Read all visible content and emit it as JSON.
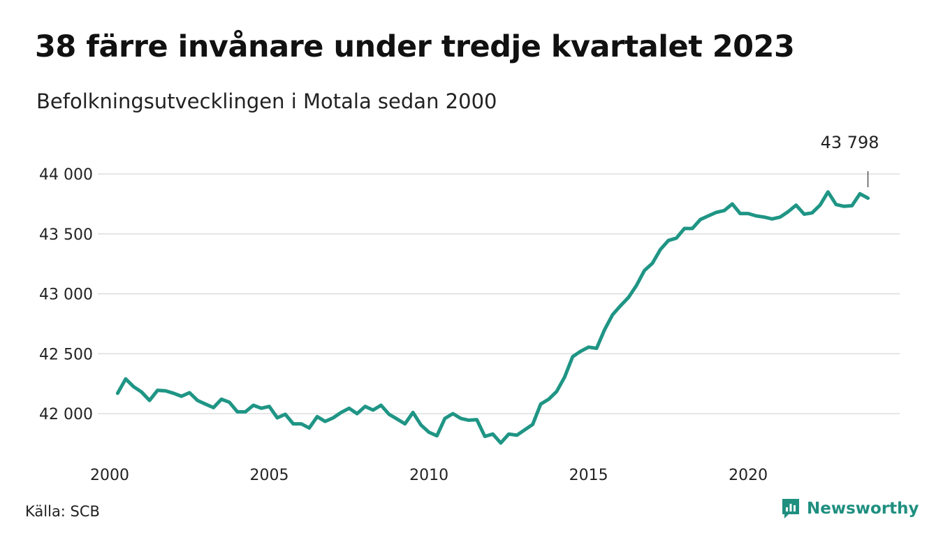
{
  "header": {
    "title": "38 färre invånare under tredje kvartalet 2023",
    "subtitle": "Befolkningsutvecklingen i Motala sedan 2000"
  },
  "footer": {
    "source": "Källa: SCB",
    "brand": "Newsworthy"
  },
  "colors": {
    "line": "#1f9585",
    "brand": "#1f8f80",
    "grid": "#dddddd"
  },
  "chart_data": {
    "type": "line",
    "title": "38 färre invånare under tredje kvartalet 2023",
    "subtitle": "Befolkningsutvecklingen i Motala sedan 2000",
    "xlabel": "",
    "ylabel": "",
    "xlim": [
      2000,
      2024
    ],
    "ylim": [
      41700,
      44000
    ],
    "grid": true,
    "x_ticks": [
      2000,
      2005,
      2010,
      2015,
      2020
    ],
    "x_tick_labels": [
      "2000",
      "2005",
      "2010",
      "2015",
      "2020"
    ],
    "y_ticks": [
      42000,
      42500,
      43000,
      43500,
      44000
    ],
    "y_tick_labels": [
      "42 000",
      "42 500",
      "43 000",
      "43 500",
      "44 000"
    ],
    "annotation": {
      "x": 2023.75,
      "y": 43798,
      "label": "43 798"
    },
    "series": [
      {
        "x": [
          2000.25,
          2000.5,
          2000.75,
          2001,
          2001.25,
          2001.5,
          2001.75,
          2002,
          2002.25,
          2002.5,
          2002.75,
          2003,
          2003.25,
          2003.5,
          2003.75,
          2004,
          2004.25,
          2004.5,
          2004.75,
          2005,
          2005.25,
          2005.5,
          2005.75,
          2006,
          2006.25,
          2006.5,
          2006.75,
          2007,
          2007.25,
          2007.5,
          2007.75,
          2008,
          2008.25,
          2008.5,
          2008.75,
          2009,
          2009.25,
          2009.5,
          2009.75,
          2010,
          2010.25,
          2010.5,
          2010.75,
          2011,
          2011.25,
          2011.5,
          2011.75,
          2012,
          2012.25,
          2012.5,
          2012.75,
          2013,
          2013.25,
          2013.5,
          2013.75,
          2014,
          2014.25,
          2014.5,
          2014.75,
          2015,
          2015.25,
          2015.5,
          2015.75,
          2016,
          2016.25,
          2016.5,
          2016.75,
          2017,
          2017.25,
          2017.5,
          2017.75,
          2018,
          2018.25,
          2018.5,
          2018.75,
          2019,
          2019.25,
          2019.5,
          2019.75,
          2020,
          2020.25,
          2020.5,
          2020.75,
          2021,
          2021.25,
          2021.5,
          2021.75,
          2022,
          2022.25,
          2022.5,
          2022.75,
          2023,
          2023.25,
          2023.5,
          2023.75
        ],
        "values": [
          42170,
          42290,
          42225,
          42180,
          42110,
          42195,
          42190,
          42170,
          42145,
          42175,
          42110,
          42080,
          42050,
          42120,
          42095,
          42015,
          42015,
          42070,
          42045,
          42060,
          41965,
          41995,
          41915,
          41915,
          41880,
          41975,
          41935,
          41965,
          42010,
          42045,
          42000,
          42060,
          42030,
          42070,
          41995,
          41955,
          41915,
          42010,
          41905,
          41845,
          41815,
          41960,
          42000,
          41960,
          41945,
          41950,
          41810,
          41830,
          41755,
          41830,
          41820,
          41865,
          41910,
          42080,
          42120,
          42185,
          42305,
          42475,
          42520,
          42555,
          42545,
          42700,
          42825,
          42900,
          42970,
          43070,
          43195,
          43255,
          43370,
          43445,
          43465,
          43545,
          43545,
          43620,
          43650,
          43680,
          43695,
          43750,
          43670,
          43670,
          43650,
          43640,
          43625,
          43640,
          43685,
          43740,
          43665,
          43675,
          43740,
          43850,
          43745,
          43730,
          43735,
          43835,
          43798
        ]
      }
    ]
  }
}
